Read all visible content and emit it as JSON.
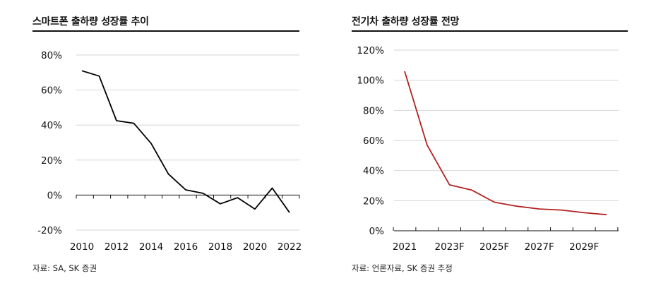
{
  "chart_data": [
    {
      "type": "line",
      "title": "스마트폰 출하량 성장률 추이",
      "source": "자료: SA, SK 증권",
      "x": [
        2010,
        2011,
        2012,
        2013,
        2014,
        2015,
        2016,
        2017,
        2018,
        2019,
        2020,
        2021,
        2022
      ],
      "series": [
        {
          "values": [
            71,
            68,
            42.5,
            41,
            29.5,
            12,
            3,
            1,
            -5,
            -1.5,
            -8,
            4,
            -10
          ]
        }
      ],
      "x_tick_labels": [
        "2010",
        "2012",
        "2014",
        "2016",
        "2018",
        "2020",
        "2022"
      ],
      "y_tick_labels": [
        "80%",
        "60%",
        "40%",
        "20%",
        "0%",
        "-20%"
      ],
      "ylim": [
        -20,
        80
      ],
      "grid": true,
      "line_color": "#000000"
    },
    {
      "type": "line",
      "title": "전기차 출하량 성장률 전망",
      "source": "자료: 언론자료, SK 증권 추정",
      "x": [
        "2021",
        "2022F",
        "2023F",
        "2024F",
        "2025F",
        "2026F",
        "2027F",
        "2028F",
        "2029F",
        "2030F"
      ],
      "series": [
        {
          "values": [
            106,
            57,
            30.5,
            27,
            19,
            16.3,
            14.5,
            13.8,
            12,
            10.7
          ]
        }
      ],
      "x_tick_labels": [
        "2021",
        "2023F",
        "2025F",
        "2027F",
        "2029F"
      ],
      "y_tick_labels": [
        "120%",
        "100%",
        "80%",
        "60%",
        "40%",
        "20%",
        "0%"
      ],
      "ylim": [
        0,
        120
      ],
      "grid": true,
      "line_color": "#b22222"
    }
  ]
}
